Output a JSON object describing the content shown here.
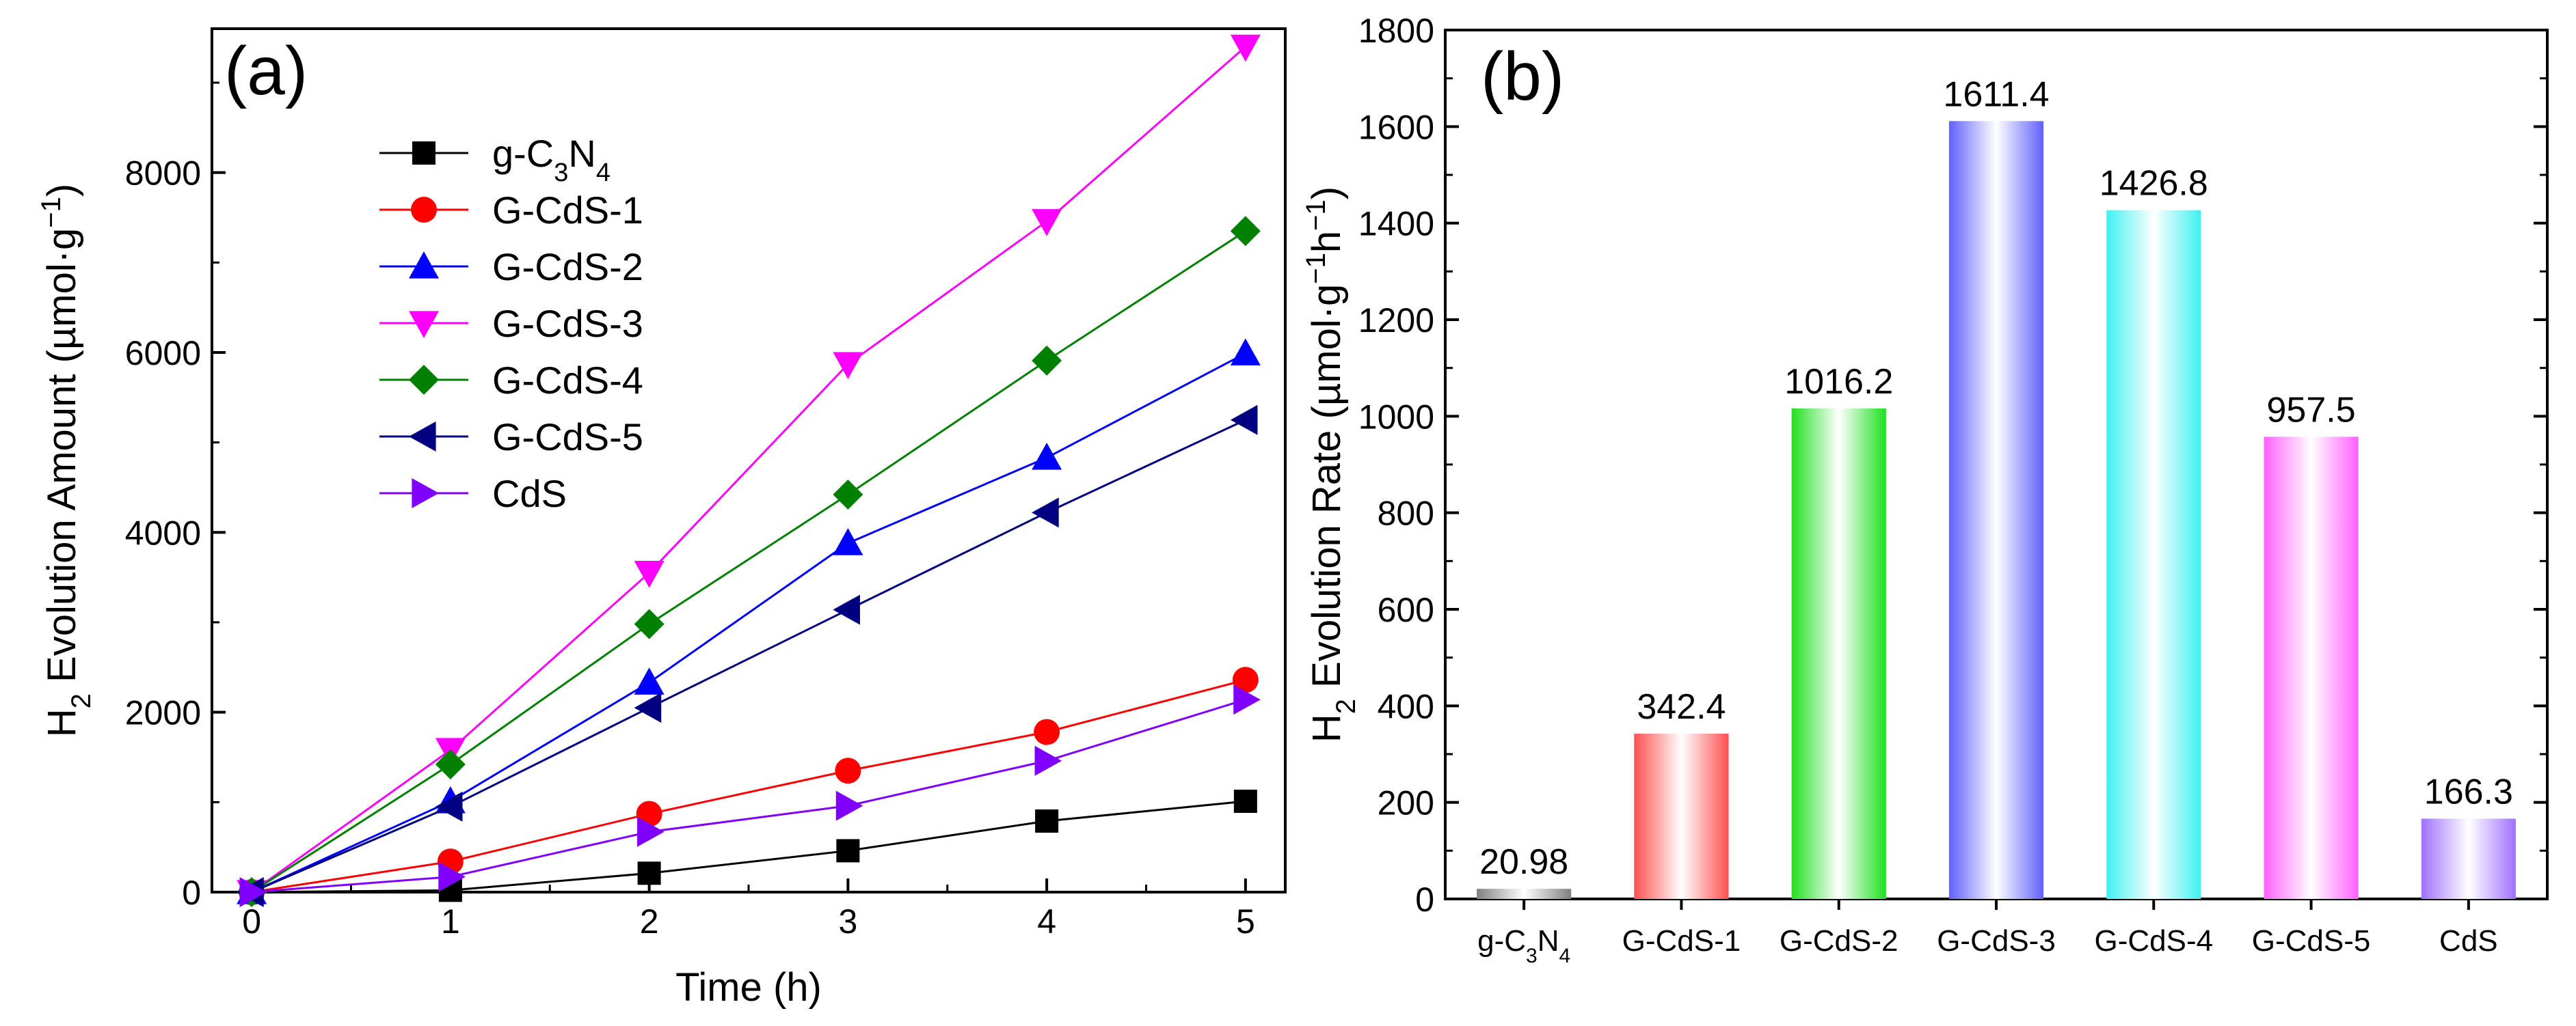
{
  "chart_data": [
    {
      "type": "line",
      "panel_label": "(a)",
      "title": "",
      "xlabel": "Time (h)",
      "ylabel": {
        "pre": "H",
        "sub": "2",
        "mid": " Evolution Amount (µmol·g",
        "sup": "−1",
        "post": ")"
      },
      "xlim": [
        -0.2,
        5.2
      ],
      "ylim": [
        0,
        9600
      ],
      "xticks": [
        0,
        1,
        2,
        3,
        4,
        5
      ],
      "yticks": [
        0,
        2000,
        4000,
        6000,
        8000
      ],
      "grid": false,
      "legend_position": "top-left",
      "x": [
        0,
        1,
        2,
        3,
        4,
        5
      ],
      "series": [
        {
          "name": "g-C3N4",
          "label": {
            "a": "g-C",
            "b": "3",
            "c": "N",
            "d": "4"
          },
          "color": "#000000",
          "marker": "square",
          "values": [
            0,
            20,
            210,
            460,
            790,
            1010
          ]
        },
        {
          "name": "G-CdS-1",
          "label": {
            "a": "G-CdS-1"
          },
          "color": "#ff0000",
          "marker": "circle",
          "values": [
            0,
            340,
            870,
            1350,
            1780,
            2360
          ]
        },
        {
          "name": "G-CdS-2",
          "label": {
            "a": "G-CdS-2"
          },
          "color": "#0000ff",
          "marker": "triangle-up",
          "values": [
            0,
            1010,
            2330,
            3880,
            4830,
            5990
          ]
        },
        {
          "name": "G-CdS-3",
          "label": {
            "a": "G-CdS-3"
          },
          "color": "#ff00ff",
          "marker": "triangle-down",
          "values": [
            0,
            1580,
            3550,
            5870,
            7460,
            9400
          ]
        },
        {
          "name": "G-CdS-4",
          "label": {
            "a": "G-CdS-4"
          },
          "color": "#008000",
          "marker": "diamond",
          "values": [
            0,
            1420,
            2980,
            4420,
            5910,
            7350
          ]
        },
        {
          "name": "G-CdS-5",
          "label": {
            "a": "G-CdS-5"
          },
          "color": "#000080",
          "marker": "triangle-left",
          "values": [
            0,
            950,
            2050,
            3140,
            4220,
            5250
          ]
        },
        {
          "name": "CdS",
          "label": {
            "a": "CdS"
          },
          "color": "#8000ff",
          "marker": "triangle-right",
          "values": [
            0,
            170,
            670,
            960,
            1460,
            2140
          ]
        }
      ]
    },
    {
      "type": "bar",
      "panel_label": "(b)",
      "title": "",
      "xlabel": "",
      "ylabel": {
        "pre": "H",
        "sub": "2",
        "mid": " Evolution Rate (µmol·g",
        "sup1": "−1",
        "mid2": "h",
        "sup2": "−1",
        "post": ")"
      },
      "ylim": [
        0,
        1800
      ],
      "yticks": [
        0,
        200,
        400,
        600,
        800,
        1000,
        1200,
        1400,
        1600,
        1800
      ],
      "grid": false,
      "categories": [
        {
          "name": "g-C3N4",
          "label": {
            "a": "g-C",
            "b": "3",
            "c": "N",
            "d": "4"
          }
        },
        {
          "name": "G-CdS-1",
          "label": {
            "a": "G-CdS-1"
          }
        },
        {
          "name": "G-CdS-2",
          "label": {
            "a": "G-CdS-2"
          }
        },
        {
          "name": "G-CdS-3",
          "label": {
            "a": "G-CdS-3"
          }
        },
        {
          "name": "G-CdS-4",
          "label": {
            "a": "G-CdS-4"
          }
        },
        {
          "name": "G-CdS-5",
          "label": {
            "a": "G-CdS-5"
          }
        },
        {
          "name": "CdS",
          "label": {
            "a": "CdS"
          }
        }
      ],
      "values": [
        20.98,
        342.4,
        1016.2,
        1611.4,
        1426.8,
        957.5,
        166.3
      ],
      "value_labels": [
        "20.98",
        "342.4",
        "1016.2",
        "1611.4",
        "1426.8",
        "957.5",
        "166.3"
      ],
      "colors": [
        "#808080",
        "#ff5050",
        "#20e020",
        "#6060ff",
        "#40f0f0",
        "#ff60ff",
        "#9f70ff"
      ]
    }
  ]
}
